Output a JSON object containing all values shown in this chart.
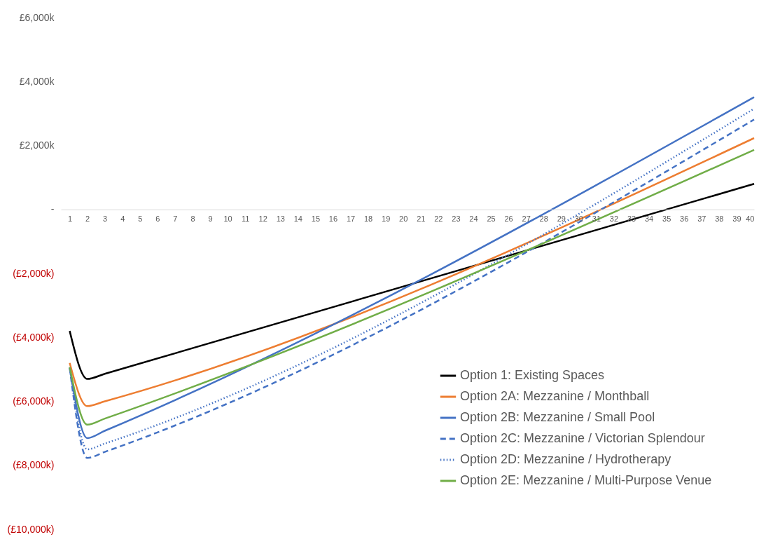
{
  "chart_data": {
    "type": "line",
    "ylim": [
      -10000,
      6000
    ],
    "yticks": [
      {
        "value": 6000,
        "label": "£6,000k"
      },
      {
        "value": 4000,
        "label": "£4,000k"
      },
      {
        "value": 2000,
        "label": "£2,000k"
      },
      {
        "value": 0,
        "label": "-"
      },
      {
        "value": -2000,
        "label": "(£2,000k)"
      },
      {
        "value": -4000,
        "label": "(£4,000k)"
      },
      {
        "value": -6000,
        "label": "(£6,000k)"
      },
      {
        "value": -8000,
        "label": "(£8,000k)"
      },
      {
        "value": -10000,
        "label": "(£10,000k)"
      }
    ],
    "xlim": [
      0.5,
      40
    ],
    "xticks": [
      1,
      2,
      3,
      4,
      5,
      6,
      7,
      8,
      9,
      10,
      11,
      12,
      13,
      14,
      15,
      16,
      17,
      18,
      19,
      20,
      21,
      22,
      23,
      24,
      25,
      26,
      27,
      28,
      29,
      30,
      31,
      32,
      33,
      34,
      35,
      36,
      37,
      38,
      39,
      40
    ],
    "grid": false,
    "legend": "bottom right",
    "series": [
      {
        "name": "Option 1: Existing Spaces",
        "color": "#000000",
        "line_style": "solid",
        "x": [
          1,
          2,
          3,
          40
        ],
        "values": [
          -3800,
          -5300,
          -5140,
          800
        ]
      },
      {
        "name": "Option 2A: Mezzanine / Monthball",
        "color": "#ed7d31",
        "line_style": "solid",
        "x": [
          1,
          2,
          3,
          40
        ],
        "values": [
          -4800,
          -6150,
          -6000,
          2230
        ]
      },
      {
        "name": "Option 2B: Mezzanine / Small Pool",
        "color": "#4472c4",
        "line_style": "solid",
        "x": [
          1,
          2,
          3,
          40
        ],
        "values": [
          -4950,
          -7150,
          -6920,
          3510
        ]
      },
      {
        "name": "Option 2C: Mezzanine / Victorian Splendour",
        "color": "#4472c4",
        "line_style": "dashed",
        "x": [
          1,
          2,
          3,
          40
        ],
        "values": [
          -4950,
          -7770,
          -7580,
          2810
        ]
      },
      {
        "name": "Option 2D: Mezzanine / Hydrotherapy",
        "color": "#4472c4",
        "line_style": "dotted",
        "x": [
          1,
          2,
          3,
          40
        ],
        "values": [
          -4950,
          -7500,
          -7320,
          3150
        ]
      },
      {
        "name": "Option 2E: Mezzanine / Multi-Purpose Venue",
        "color": "#70ad47",
        "line_style": "solid",
        "x": [
          1,
          2,
          3,
          40
        ],
        "values": [
          -4930,
          -6730,
          -6540,
          1860
        ]
      }
    ]
  }
}
